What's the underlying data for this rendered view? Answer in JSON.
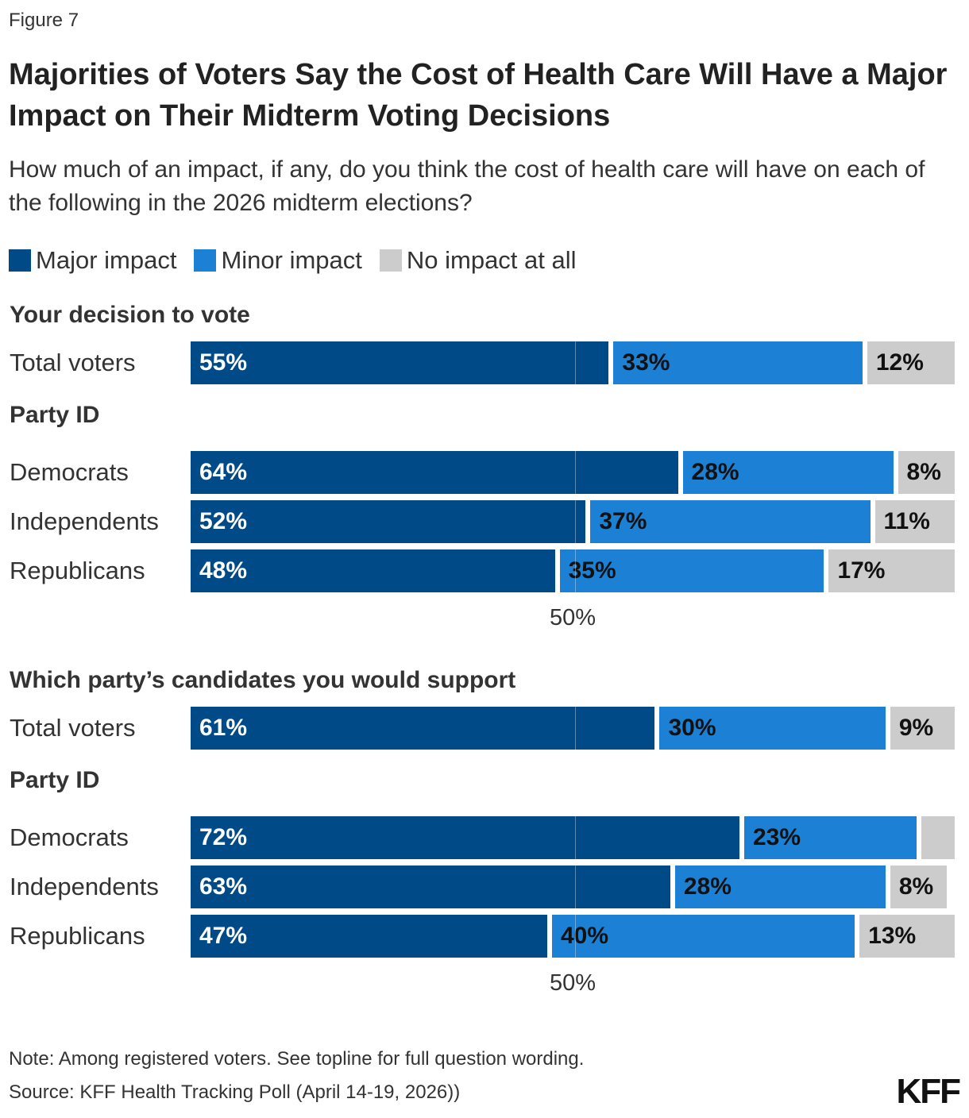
{
  "figure_label": "Figure 7",
  "chart_data": {
    "type": "bar",
    "orientation": "horizontal",
    "stacked": true,
    "title": "Majorities of Voters Say the Cost of Health Care Will Have a Major Impact on Their Midterm Voting Decisions",
    "subtitle": "How much of an impact, if any, do you think the cost of health care will have on each of the following in the 2026 midterm elections?",
    "legend": [
      {
        "name": "Major impact",
        "color": "#004a87"
      },
      {
        "name": "Minor impact",
        "color": "#1c80d4"
      },
      {
        "name": "No impact at all",
        "color": "#cccccc"
      }
    ],
    "legend_placement": "top-left",
    "xlim": [
      0,
      100
    ],
    "reference_line": {
      "value": 50,
      "label": "50%"
    },
    "panels": [
      {
        "title": "Your decision to vote",
        "groups": [
          {
            "heading": "",
            "rows": [
              {
                "label": "Total voters",
                "values": [
                  55,
                  33,
                  12
                ],
                "labels": [
                  "55%",
                  "33%",
                  "12%"
                ]
              }
            ]
          },
          {
            "heading": "Party ID",
            "rows": [
              {
                "label": "Democrats",
                "values": [
                  64,
                  28,
                  8
                ],
                "labels": [
                  "64%",
                  "28%",
                  "8%"
                ]
              },
              {
                "label": "Independents",
                "values": [
                  52,
                  37,
                  11
                ],
                "labels": [
                  "52%",
                  "37%",
                  "11%"
                ]
              },
              {
                "label": "Republicans",
                "values": [
                  48,
                  35,
                  17
                ],
                "labels": [
                  "48%",
                  "35%",
                  "17%"
                ]
              }
            ]
          }
        ]
      },
      {
        "title": "Which party’s candidates you would support",
        "groups": [
          {
            "heading": "",
            "rows": [
              {
                "label": "Total voters",
                "values": [
                  61,
                  30,
                  9
                ],
                "labels": [
                  "61%",
                  "30%",
                  "9%"
                ]
              }
            ]
          },
          {
            "heading": "Party ID",
            "rows": [
              {
                "label": "Democrats",
                "values": [
                  72,
                  23,
                  5
                ],
                "labels": [
                  "72%",
                  "23%",
                  ""
                ]
              },
              {
                "label": "Independents",
                "values": [
                  63,
                  28,
                  8
                ],
                "labels": [
                  "63%",
                  "28%",
                  "8%"
                ]
              },
              {
                "label": "Republicans",
                "values": [
                  47,
                  40,
                  13
                ],
                "labels": [
                  "47%",
                  "40%",
                  "13%"
                ]
              }
            ]
          }
        ]
      }
    ]
  },
  "note": "Note: Among registered voters. See topline for full question wording.",
  "source": "Source: KFF Health Tracking Poll (April 14-19, 2026))",
  "logo": "KFF"
}
